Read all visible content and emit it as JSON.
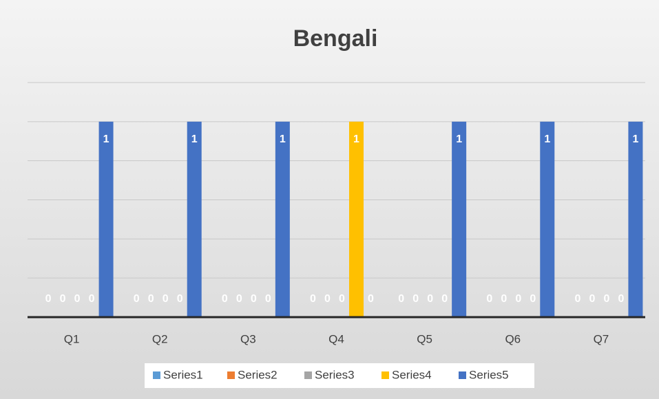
{
  "chart_data": {
    "type": "bar",
    "title": "Bengali",
    "categories": [
      "Q1",
      "Q2",
      "Q3",
      "Q4",
      "Q5",
      "Q6",
      "Q7"
    ],
    "series": [
      {
        "name": "Series1",
        "color": "#5b9bd5",
        "values": [
          0,
          0,
          0,
          0,
          0,
          0,
          0
        ]
      },
      {
        "name": "Series2",
        "color": "#ed7d31",
        "values": [
          0,
          0,
          0,
          0,
          0,
          0,
          0
        ]
      },
      {
        "name": "Series3",
        "color": "#a5a5a5",
        "values": [
          0,
          0,
          0,
          0,
          0,
          0,
          0
        ]
      },
      {
        "name": "Series4",
        "color": "#ffc000",
        "values": [
          0,
          0,
          0,
          1,
          0,
          0,
          0
        ]
      },
      {
        "name": "Series5",
        "color": "#4472c4",
        "values": [
          1,
          1,
          1,
          0,
          1,
          1,
          1
        ]
      }
    ],
    "ylim": [
      0,
      1.2
    ],
    "yticks": [
      0,
      0.2,
      0.4,
      0.6,
      0.8,
      1,
      1.2
    ],
    "grid": true,
    "legend": "bottom"
  }
}
